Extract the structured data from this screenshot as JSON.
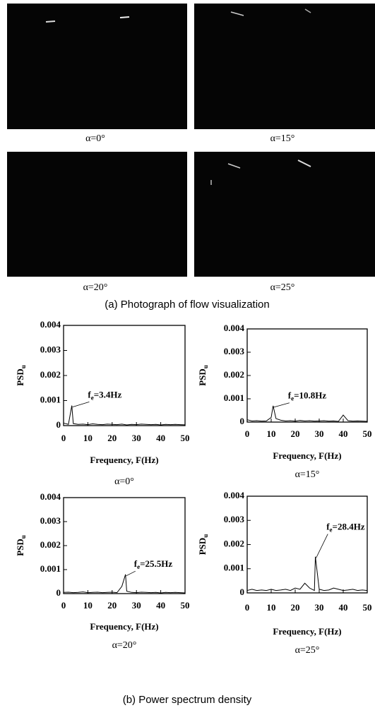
{
  "figure": {
    "photos": [
      {
        "caption": "α=0°"
      },
      {
        "caption": "α=15°"
      },
      {
        "caption": "α=20°"
      },
      {
        "caption": "α=25°"
      }
    ],
    "caption_a": "(a) Photograph of flow visualization",
    "caption_b": "(b) Power spectrum density"
  },
  "chart_data": [
    {
      "type": "line",
      "subtitle": "α=0°",
      "xlabel": "Frequency, F(Hz)",
      "ylabel": "PSD",
      "ylabel_sub": "u",
      "annotation": {
        "symbol": "f",
        "subscript": "e",
        "text": "=3.4Hz"
      },
      "color": "#000000",
      "xlim": [
        0,
        50
      ],
      "ylim": [
        0,
        0.004
      ],
      "xticks": [
        0,
        10,
        20,
        30,
        40,
        50
      ],
      "yticks": [
        0,
        0.001,
        0.002,
        0.003,
        0.004
      ],
      "x": [
        0,
        2,
        3.4,
        4,
        6,
        8,
        10,
        12,
        14,
        16,
        18,
        20,
        22,
        24,
        26,
        28,
        30,
        32,
        34,
        36,
        38,
        40,
        42,
        44,
        46,
        48,
        50
      ],
      "values": [
        0.0001,
        5e-05,
        0.0008,
        8e-05,
        5e-05,
        6e-05,
        4e-05,
        7e-05,
        5e-05,
        4e-05,
        6e-05,
        5e-05,
        4e-05,
        6e-05,
        3e-05,
        5e-05,
        4e-05,
        6e-05,
        5e-05,
        4e-05,
        5e-05,
        3e-05,
        5e-05,
        4e-05,
        5e-05,
        4e-05,
        3e-05
      ]
    },
    {
      "type": "line",
      "subtitle": "α=15°",
      "xlabel": "Frequency, F(Hz)",
      "ylabel": "PSD",
      "ylabel_sub": "u",
      "annotation": {
        "symbol": "f",
        "subscript": "e",
        "text": "=10.8Hz"
      },
      "color": "#000000",
      "xlim": [
        0,
        50
      ],
      "ylim": [
        0,
        0.004
      ],
      "xticks": [
        0,
        10,
        20,
        30,
        40,
        50
      ],
      "yticks": [
        0,
        0.001,
        0.002,
        0.003,
        0.004
      ],
      "x": [
        0,
        2,
        4,
        6,
        8,
        10,
        10.8,
        12,
        14,
        16,
        18,
        20,
        22,
        24,
        26,
        28,
        30,
        32,
        34,
        36,
        38,
        40,
        42,
        44,
        46,
        48,
        50
      ],
      "values": [
        0.0001,
        5e-05,
        6e-05,
        4e-05,
        5e-05,
        0.0002,
        0.0007,
        0.00015,
        8e-05,
        5e-05,
        6e-05,
        4e-05,
        7e-05,
        5e-05,
        6e-05,
        4e-05,
        5e-05,
        6e-05,
        4e-05,
        5e-05,
        3e-05,
        0.0003,
        6e-05,
        4e-05,
        5e-05,
        4e-05,
        3e-05
      ]
    },
    {
      "type": "line",
      "subtitle": "α=20°",
      "xlabel": "Frequency, F(Hz)",
      "ylabel": "PSD",
      "ylabel_sub": "u",
      "annotation": {
        "symbol": "f",
        "subscript": "e",
        "text": "=25.5Hz"
      },
      "color": "#000000",
      "xlim": [
        0,
        50
      ],
      "ylim": [
        0,
        0.004
      ],
      "xticks": [
        0,
        10,
        20,
        30,
        40,
        50
      ],
      "yticks": [
        0,
        0.001,
        0.002,
        0.003,
        0.004
      ],
      "x": [
        0,
        2,
        4,
        6,
        8,
        10,
        12,
        14,
        16,
        18,
        20,
        22,
        24,
        25.5,
        26,
        28,
        30,
        32,
        34,
        36,
        38,
        40,
        42,
        44,
        46,
        48,
        50
      ],
      "values": [
        5e-05,
        6e-05,
        4e-05,
        5e-05,
        7e-05,
        4e-05,
        5e-05,
        6e-05,
        4e-05,
        5e-05,
        6e-05,
        4e-05,
        0.0003,
        0.0008,
        0.0001,
        5e-05,
        4e-05,
        6e-05,
        5e-05,
        4e-05,
        5e-05,
        3e-05,
        5e-05,
        4e-05,
        5e-05,
        4e-05,
        3e-05
      ]
    },
    {
      "type": "line",
      "subtitle": "α=25°",
      "xlabel": "Frequency, F(Hz)",
      "ylabel": "PSD",
      "ylabel_sub": "u",
      "annotation": {
        "symbol": "f",
        "subscript": "e",
        "text": "=28.4Hz"
      },
      "color": "#000000",
      "xlim": [
        0,
        50
      ],
      "ylim": [
        0,
        0.004
      ],
      "xticks": [
        0,
        10,
        20,
        30,
        40,
        50
      ],
      "yticks": [
        0,
        0.001,
        0.002,
        0.003,
        0.004
      ],
      "x": [
        0,
        2,
        4,
        6,
        8,
        10,
        12,
        14,
        16,
        18,
        20,
        22,
        24,
        26,
        28,
        28.4,
        30,
        32,
        34,
        36,
        38,
        40,
        42,
        44,
        46,
        48,
        50
      ],
      "values": [
        0.0001,
        0.00015,
        0.0001,
        0.00012,
        0.0001,
        0.00015,
        0.0001,
        0.00012,
        0.00015,
        0.0001,
        0.0002,
        0.00015,
        0.0004,
        0.0002,
        0.0001,
        0.0015,
        0.00015,
        0.0001,
        0.00012,
        0.0002,
        0.00015,
        0.0001,
        0.00012,
        0.00015,
        0.0001,
        0.00012,
        0.0001
      ]
    }
  ]
}
